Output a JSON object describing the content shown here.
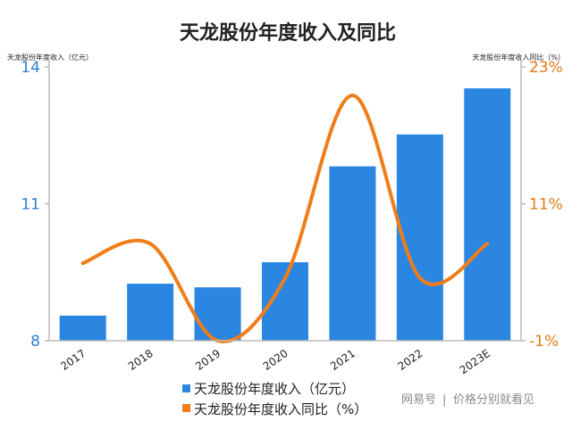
{
  "chart_data": {
    "type": "bar",
    "title": "天龙股份年度收入及同比",
    "categories": [
      "2017",
      "2018",
      "2019",
      "2020",
      "2021",
      "2022",
      "2023E"
    ],
    "series": [
      {
        "name": "天龙股份年度收入（亿元）",
        "type": "bar",
        "axis": "left",
        "color": "#2b86e2",
        "values": [
          8.55,
          9.25,
          9.17,
          9.72,
          11.82,
          12.52,
          13.53
        ]
      },
      {
        "name": "天龙股份年度收入同比（%）",
        "type": "line",
        "axis": "right",
        "color": "#ef7d1a",
        "values": [
          5.8,
          7.5,
          -1.0,
          4.5,
          20.5,
          4.5,
          7.5
        ]
      }
    ],
    "y_left": {
      "label": "天龙股份年度收入（亿元）",
      "ylim": [
        8,
        14
      ],
      "ticks": [
        "8",
        "11",
        "14"
      ]
    },
    "y_right": {
      "label": "天龙股份年度收入同比（%）",
      "ylim": [
        -1,
        23
      ],
      "ticks": [
        "-1%",
        "11%",
        "23%"
      ]
    },
    "grid": false,
    "legend_position": "bottom"
  },
  "watermark": {
    "brand": "网易号",
    "separator": "|",
    "author": "价格分别就看见"
  },
  "colors": {
    "bar": "#2b86e2",
    "line": "#ef7d1a",
    "left_axis": "#2f7fd4",
    "right_axis": "#e07b18"
  }
}
